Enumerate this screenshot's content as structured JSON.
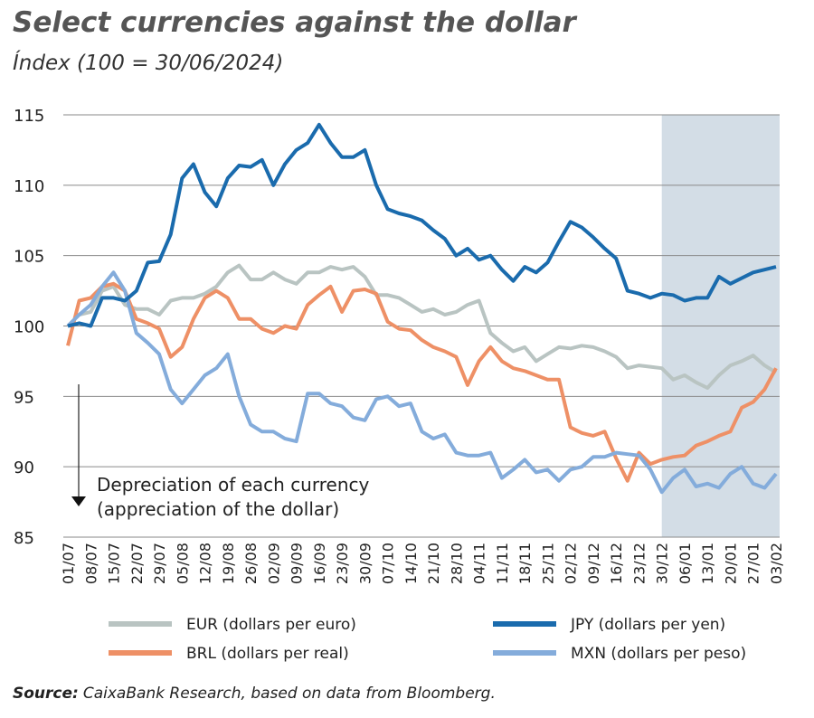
{
  "chart_data": {
    "type": "line",
    "title": "Select currencies against the dollar",
    "subtitle": "Índex (100 = 30/06/2024)",
    "categories": [
      "01/07",
      null,
      "08/07",
      null,
      "15/07",
      null,
      "22/07",
      null,
      "29/07",
      null,
      "05/08",
      null,
      "12/08",
      null,
      "19/08",
      null,
      "26/08",
      null,
      "02/09",
      null,
      "09/09",
      null,
      "16/09",
      null,
      "23/09",
      null,
      "30/09",
      null,
      "07/10",
      null,
      "14/10",
      null,
      "21/10",
      null,
      "28/10",
      null,
      "04/11",
      null,
      "11/11",
      null,
      "18/11",
      null,
      "25/11",
      null,
      "02/12",
      null,
      "09/12",
      null,
      "16/12",
      null,
      "23/12",
      null,
      "30/12",
      null,
      "06/01",
      null,
      "13/01",
      null,
      "20/01",
      null,
      "27/01",
      null,
      "03/02"
    ],
    "series": [
      {
        "name": "EUR (dollars per euro)",
        "color": "#b9c4c2",
        "values": [
          100,
          100.8,
          101,
          102.5,
          102.8,
          101.5,
          101.2,
          101.2,
          100.8,
          101.8,
          102,
          102,
          102.3,
          102.8,
          103.8,
          104.3,
          103.3,
          103.3,
          103.8,
          103.3,
          103,
          103.8,
          103.8,
          104.2,
          104,
          104.2,
          103.5,
          102.2,
          102.2,
          102,
          101.5,
          101,
          101.2,
          100.8,
          101,
          101.5,
          101.8,
          99.5,
          98.8,
          98.2,
          98.5,
          97.5,
          98,
          98.5,
          98.4,
          98.6,
          98.5,
          98.2,
          97.8,
          97,
          97.2,
          97.1,
          97,
          96.2,
          96.5,
          96,
          95.6,
          96.5,
          97.2,
          97.5,
          97.9,
          97.2,
          96.7
        ]
      },
      {
        "name": "JPY (dollars per yen)",
        "color": "#1a6bad",
        "values": [
          100,
          100.2,
          100,
          102,
          102,
          101.8,
          102.5,
          104.5,
          104.6,
          106.5,
          110.5,
          111.5,
          109.5,
          108.5,
          110.5,
          111.4,
          111.3,
          111.8,
          110,
          111.5,
          112.5,
          113,
          114.3,
          113,
          112,
          112,
          112.5,
          110,
          108.3,
          108,
          107.8,
          107.5,
          106.8,
          106.2,
          105,
          105.5,
          104.7,
          105,
          104,
          103.2,
          104.2,
          103.8,
          104.5,
          106,
          107.4,
          107,
          106.3,
          105.5,
          104.8,
          102.5,
          102.3,
          102,
          102.3,
          102.2,
          101.8,
          102,
          102,
          103.5,
          103,
          103.4,
          103.8,
          104,
          104.2
        ]
      },
      {
        "name": "BRL (dollars per real)",
        "color": "#ee9066",
        "values": [
          98.6,
          101.8,
          102,
          102.8,
          103,
          102.5,
          100.5,
          100.2,
          99.8,
          97.8,
          98.5,
          100.5,
          102,
          102.5,
          102,
          100.5,
          100.5,
          99.8,
          99.5,
          100,
          99.8,
          101.5,
          102.2,
          102.8,
          101,
          102.5,
          102.6,
          102.3,
          100.3,
          99.8,
          99.7,
          99,
          98.5,
          98.2,
          97.8,
          95.8,
          97.5,
          98.5,
          97.5,
          97,
          96.8,
          96.5,
          96.2,
          96.2,
          92.8,
          92.4,
          92.2,
          92.5,
          90.6,
          89,
          91,
          90.2,
          90.5,
          90.7,
          90.8,
          91.5,
          91.8,
          92.2,
          92.5,
          94.2,
          94.6,
          95.5,
          97
        ]
      },
      {
        "name": "MXN (dollars per peso)",
        "color": "#84acdb",
        "values": [
          100,
          100.8,
          101.5,
          102.8,
          103.8,
          102.5,
          99.5,
          98.8,
          98,
          95.5,
          94.5,
          95.5,
          96.5,
          97,
          98,
          95,
          93,
          92.5,
          92.5,
          92,
          91.8,
          95.2,
          95.2,
          94.5,
          94.3,
          93.5,
          93.3,
          94.8,
          95,
          94.3,
          94.5,
          92.5,
          92,
          92.3,
          91,
          90.8,
          90.8,
          91,
          89.2,
          89.8,
          90.5,
          89.6,
          89.8,
          89,
          89.8,
          90,
          90.7,
          90.7,
          91,
          90.9,
          90.8,
          89.8,
          88.2,
          89.2,
          89.8,
          88.6,
          88.8,
          88.5,
          89.5,
          90,
          88.8,
          88.5,
          89.5
        ]
      }
    ],
    "ylim": [
      85,
      115
    ],
    "yticks": [
      85,
      90,
      95,
      100,
      105,
      110,
      115
    ],
    "grid": true,
    "highlight_from": "30/12",
    "annotation": [
      "Depreciation of each currency",
      "(appreciation of the dollar)"
    ],
    "source": {
      "label": "Source:",
      "text": "CaixaBank Research, based on data from Bloomberg."
    }
  }
}
